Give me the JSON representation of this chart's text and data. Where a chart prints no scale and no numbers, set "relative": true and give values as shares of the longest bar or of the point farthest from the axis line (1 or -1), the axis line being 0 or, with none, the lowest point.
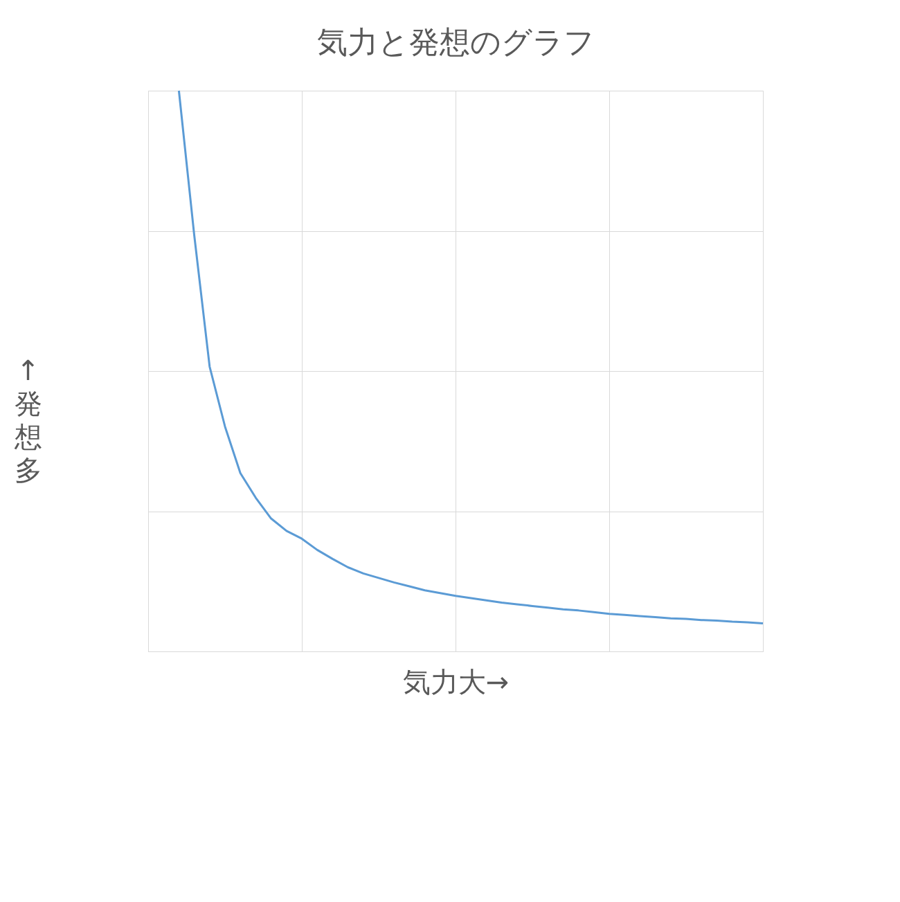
{
  "chart_data": {
    "type": "line",
    "title": "気力と発想のグラフ",
    "xlabel": "気力大→",
    "ylabel": "↑発想多",
    "relative": true,
    "grid": true,
    "tick_labels": false,
    "legend": false,
    "marker": "none",
    "line_style": "solid",
    "categories": [
      null,
      null,
      null,
      null,
      null,
      null,
      null,
      null,
      null,
      null,
      null,
      null,
      null,
      null,
      null,
      null,
      null,
      null,
      null,
      null,
      null,
      null,
      null,
      null,
      null,
      null,
      null,
      null,
      null,
      null,
      null,
      null,
      null,
      null,
      null,
      null,
      null,
      null,
      null,
      null,
      null
    ],
    "series": [
      {
        "color": "#5b9bd5",
        "values": [
          null,
          null,
          1.0,
          0.742,
          0.508,
          0.401,
          0.318,
          0.274,
          0.237,
          0.215,
          0.201,
          0.181,
          0.165,
          0.15,
          0.139,
          0.131,
          0.123,
          0.116,
          0.109,
          0.104,
          0.099,
          0.095,
          0.091,
          0.087,
          0.084,
          0.081,
          0.078,
          0.075,
          0.073,
          0.07,
          0.067,
          0.065,
          0.063,
          0.061,
          0.059,
          0.058,
          0.056,
          0.055,
          0.053,
          0.052,
          0.05
        ]
      }
    ]
  }
}
